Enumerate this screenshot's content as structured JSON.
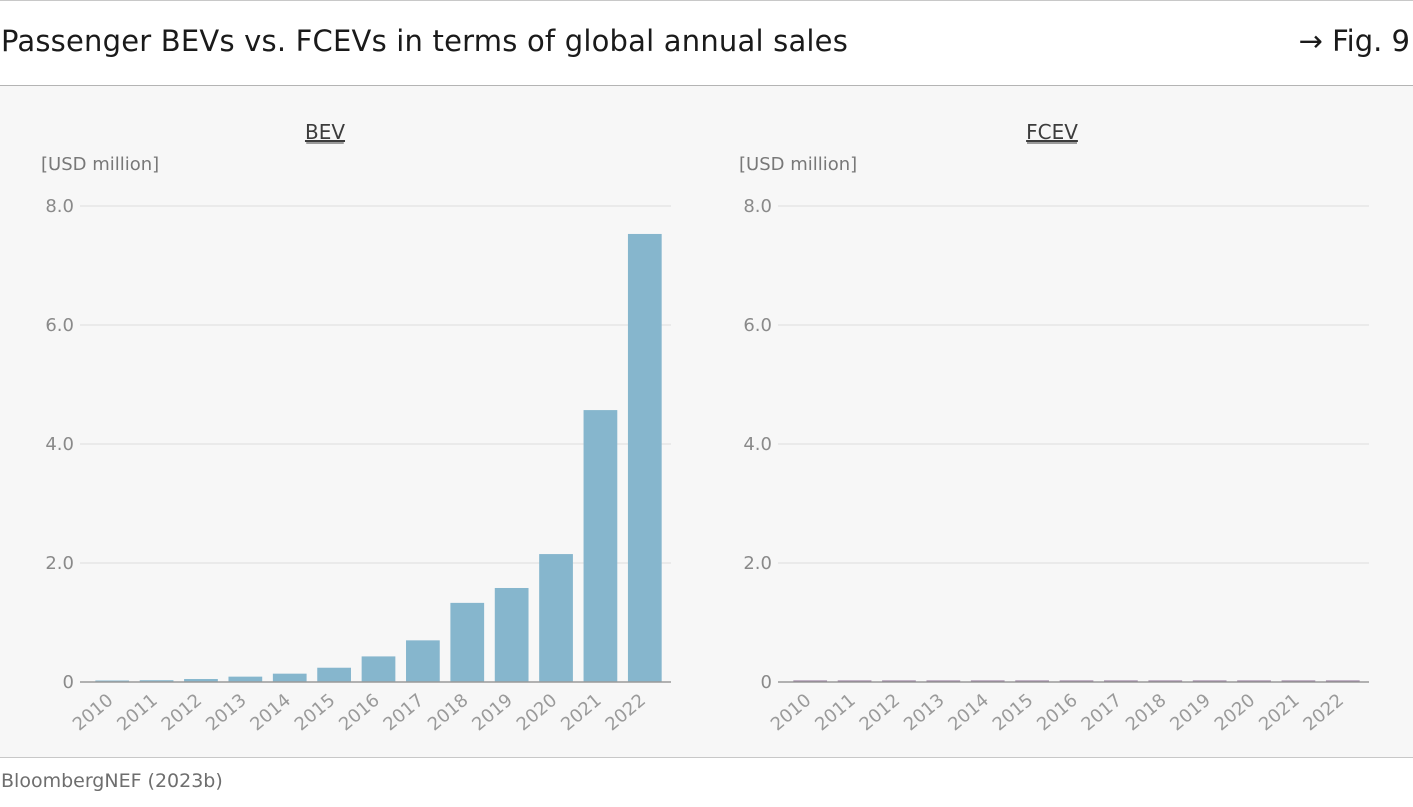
{
  "header": {
    "title": "Passenger BEVs vs. FCEVs in terms of global annual sales",
    "figure_ref": "→ Fig. 9"
  },
  "footer": {
    "source": "BloombergNEF (2023b)"
  },
  "colors": {
    "bev_bar": "#86b6cd",
    "fcev_bar": "#8b6d93",
    "panel_background": "#f7f7f7",
    "gridline": "#e6e6e6"
  },
  "chart_data": [
    {
      "type": "bar",
      "title": "BEV",
      "ylabel": "[USD million]",
      "xlabel": "",
      "categories": [
        "2010",
        "2011",
        "2012",
        "2013",
        "2014",
        "2015",
        "2016",
        "2017",
        "2018",
        "2019",
        "2020",
        "2021",
        "2022"
      ],
      "values": [
        0.01,
        0.03,
        0.05,
        0.09,
        0.14,
        0.24,
        0.43,
        0.7,
        1.33,
        1.58,
        2.15,
        4.57,
        7.53
      ],
      "ylim": [
        0,
        8
      ],
      "yticks": [
        0,
        2.0,
        4.0,
        6.0,
        8.0
      ],
      "ytick_labels": [
        "0",
        "2.0",
        "4.0",
        "6.0",
        "8.0"
      ],
      "grid": true
    },
    {
      "type": "bar",
      "title": "FCEV",
      "ylabel": "[USD million]",
      "xlabel": "",
      "categories": [
        "2010",
        "2011",
        "2012",
        "2013",
        "2014",
        "2015",
        "2016",
        "2017",
        "2018",
        "2019",
        "2020",
        "2021",
        "2022"
      ],
      "values": [
        0.0,
        0.0,
        0.0,
        0.0,
        0.0,
        0.001,
        0.002,
        0.003,
        0.005,
        0.01,
        0.01,
        0.015,
        0.015
      ],
      "ylim": [
        0,
        8
      ],
      "yticks": [
        0,
        2.0,
        4.0,
        6.0,
        8.0
      ],
      "ytick_labels": [
        "0",
        "2.0",
        "4.0",
        "6.0",
        "8.0"
      ],
      "grid": true
    }
  ]
}
